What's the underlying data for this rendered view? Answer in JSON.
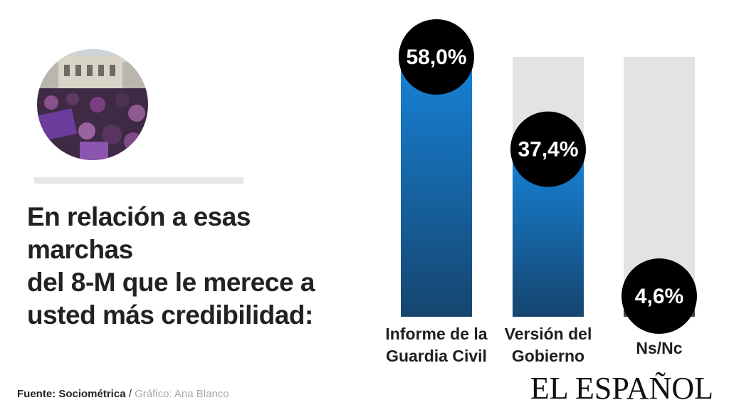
{
  "question": [
    "En relación a esas marchas",
    "del 8-M que le merece a",
    "usted más credibilidad:"
  ],
  "source": {
    "label": "Fuente: Sociométrica",
    "separator": "/",
    "credit": "Gráfico: Ana Blanco"
  },
  "logo": "EL ESPAÑOL",
  "colors": {
    "bar_top": "#1683d8",
    "bar_bottom": "#16456f",
    "track": "#e3e3e3",
    "badge": "#000000",
    "ns_bar": "#444444"
  },
  "chart_data": {
    "type": "bar",
    "categories": [
      [
        "Informe de la",
        "Guardia Civil"
      ],
      [
        "Versión del",
        "Gobierno"
      ],
      [
        "Ns/Nc"
      ]
    ],
    "values": [
      58.0,
      37.4,
      4.6
    ],
    "value_labels": [
      "58,0%",
      "37,4%",
      "4,6%"
    ],
    "ylim": [
      0,
      58
    ]
  }
}
